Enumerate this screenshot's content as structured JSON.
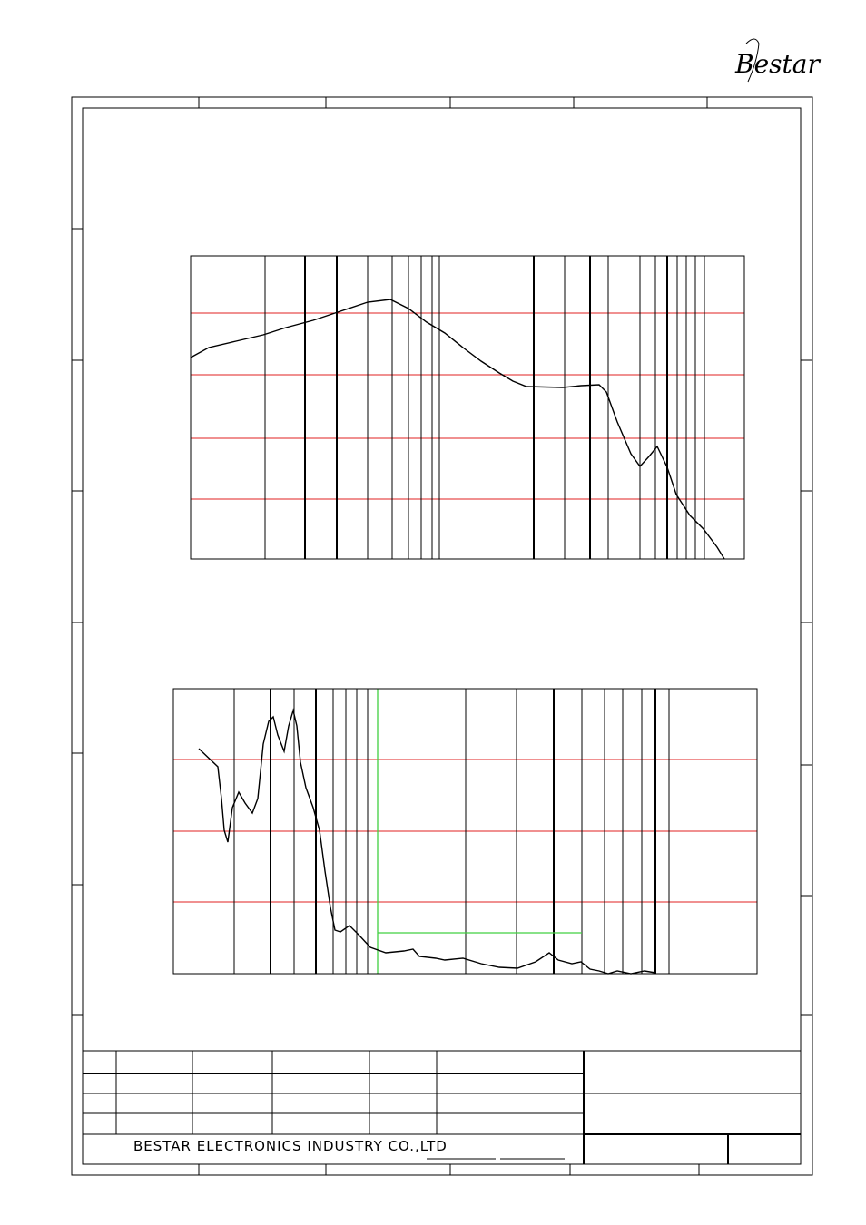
{
  "header": {
    "logo": "Bestar"
  },
  "title_block": {
    "company": "BESTAR ELECTRONICS INDUSTRY CO.,LTD"
  }
}
